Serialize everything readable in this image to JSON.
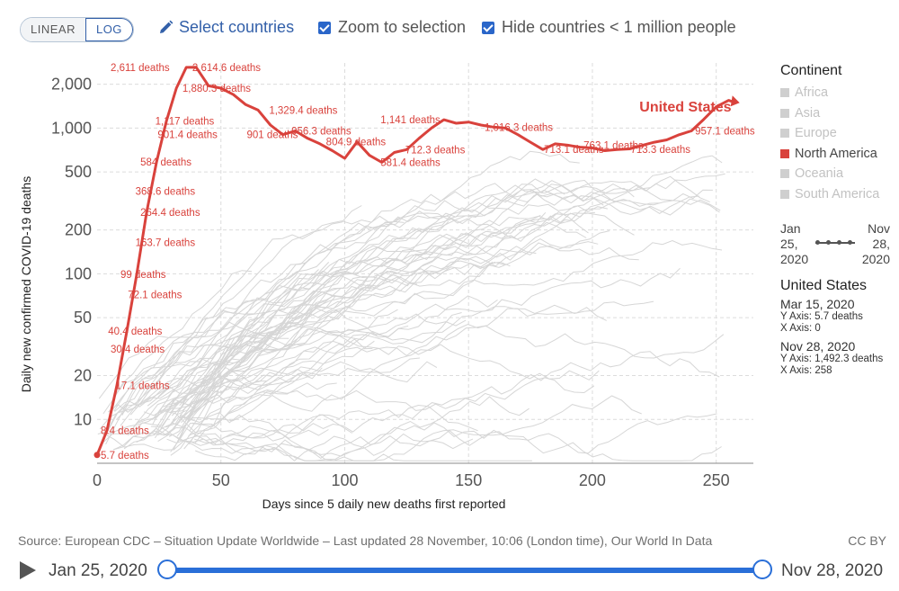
{
  "controls": {
    "linear_label": "LINEAR",
    "log_label": "LOG",
    "select_countries": "Select countries",
    "zoom_label": "Zoom to selection",
    "hide_label": "Hide countries < 1 million people"
  },
  "colors": {
    "highlight": "#d9423c",
    "background_lines": "#d6d6d6",
    "accent": "#2a6fd8"
  },
  "chart_data": {
    "type": "line",
    "yscale": "log",
    "xlabel": "Days since 5 daily new deaths first reported",
    "ylabel": "Daily new confirmed COVID-19 deaths",
    "xlim": [
      0,
      265
    ],
    "ylim": [
      5,
      2800
    ],
    "x_ticks": [
      0,
      50,
      100,
      150,
      200,
      250
    ],
    "y_ticks": [
      10,
      20,
      50,
      100,
      200,
      500,
      1000,
      2000
    ],
    "y_tick_labels": [
      "10",
      "20",
      "50",
      "100",
      "200",
      "500",
      "1,000",
      "2,000"
    ],
    "grid": true,
    "series": [
      {
        "name": "United States",
        "color": "#d9423c",
        "x": [
          0,
          4,
          8,
          12,
          16,
          20,
          24,
          28,
          32,
          36,
          40,
          45,
          50,
          55,
          60,
          65,
          70,
          75,
          80,
          85,
          90,
          95,
          100,
          105,
          110,
          115,
          120,
          125,
          130,
          135,
          140,
          145,
          150,
          155,
          160,
          165,
          170,
          175,
          180,
          185,
          190,
          195,
          200,
          205,
          210,
          215,
          220,
          225,
          230,
          235,
          240,
          245,
          250,
          255,
          258
        ],
        "y": [
          5.7,
          8.4,
          17.1,
          40.4,
          99,
          264.4,
          584,
          1117,
          1880.3,
          2611,
          2614.6,
          1950,
          1880.3,
          1700,
          1450,
          1329.4,
          1050,
          901,
          956.3,
          850,
          780,
          700,
          620,
          804.9,
          650,
          581.4,
          680,
          712.3,
          850,
          1000,
          1141,
          1080,
          1100,
          1050,
          1016.3,
          1000,
          900,
          800,
          713.1,
          780,
          763.1,
          740,
          730,
          700,
          713.3,
          720,
          760,
          800,
          830,
          900,
          957.1,
          1150,
          1400,
          1550,
          1492.3
        ]
      }
    ],
    "annotations": [
      {
        "x": 0,
        "y": 5.7,
        "text": "5.7 deaths"
      },
      {
        "x": 0,
        "y": 8.4,
        "text": "8.4 deaths"
      },
      {
        "x": 6,
        "y": 17.1,
        "text": "17.1 deaths"
      },
      {
        "x": 4,
        "y": 30.4,
        "text": "30.4 deaths"
      },
      {
        "x": 3,
        "y": 40.4,
        "text": "40.4 deaths"
      },
      {
        "x": 11,
        "y": 72.1,
        "text": "72.1 deaths"
      },
      {
        "x": 8,
        "y": 99,
        "text": "99 deaths"
      },
      {
        "x": 14,
        "y": 163.7,
        "text": "163.7 deaths"
      },
      {
        "x": 16,
        "y": 264.4,
        "text": "264.4 deaths"
      },
      {
        "x": 14,
        "y": 368.6,
        "text": "368.6 deaths"
      },
      {
        "x": 16,
        "y": 584,
        "text": "584 deaths"
      },
      {
        "x": 23,
        "y": 901.4,
        "text": "901.4 deaths"
      },
      {
        "x": 22,
        "y": 1117,
        "text": "1,117 deaths"
      },
      {
        "x": 33,
        "y": 1880.3,
        "text": "1,880.3 deaths"
      },
      {
        "x": 4,
        "y": 2611,
        "text": "2,611 deaths"
      },
      {
        "x": 37,
        "y": 2614.6,
        "text": "2,614.6 deaths"
      },
      {
        "x": 68,
        "y": 1329.4,
        "text": "1,329.4 deaths"
      },
      {
        "x": 77,
        "y": 956.3,
        "text": "956.3 deaths"
      },
      {
        "x": 59,
        "y": 901,
        "text": "901 deaths"
      },
      {
        "x": 91,
        "y": 804.9,
        "text": "804.9 deaths"
      },
      {
        "x": 113,
        "y": 581.4,
        "text": "581.4 deaths"
      },
      {
        "x": 123,
        "y": 712.3,
        "text": "712.3 deaths"
      },
      {
        "x": 113,
        "y": 1141,
        "text": "1,141 deaths"
      },
      {
        "x": 155,
        "y": 1016.3,
        "text": "1,016.3 deaths"
      },
      {
        "x": 179,
        "y": 713.1,
        "text": "713.1 deaths"
      },
      {
        "x": 195,
        "y": 763.1,
        "text": "763.1 deaths"
      },
      {
        "x": 214,
        "y": 713.3,
        "text": "713.3 deaths"
      },
      {
        "x": 240,
        "y": 957.1,
        "text": "957.1 deaths"
      }
    ],
    "series_label": {
      "text": "United States",
      "x": 219,
      "y": 1300
    }
  },
  "legend": {
    "title": "Continent",
    "items": [
      {
        "label": "Africa",
        "active": false
      },
      {
        "label": "Asia",
        "active": false
      },
      {
        "label": "Europe",
        "active": false
      },
      {
        "label": "North America",
        "active": true
      },
      {
        "label": "Oceania",
        "active": false
      },
      {
        "label": "South America",
        "active": false
      }
    ]
  },
  "mini_timeline": {
    "start_lines": [
      "Jan",
      "25,",
      "2020"
    ],
    "end_lines": [
      "Nov",
      "28,",
      "2020"
    ]
  },
  "info_panel": {
    "country": "United States",
    "point1": {
      "date": "Mar 15, 2020",
      "y_text": "Y Axis: 5.7 deaths",
      "x_text": "X Axis: 0"
    },
    "point2": {
      "date": "Nov 28, 2020",
      "y_text": "Y Axis: 1,492.3 deaths",
      "x_text": "X Axis: 258"
    }
  },
  "footer": {
    "source": "Source: European CDC – Situation Update Worldwide – Last updated 28 November, 10:06 (London time), Our World In Data",
    "license": "CC BY"
  },
  "timeline": {
    "start": "Jan 25, 2020",
    "end": "Nov 28, 2020",
    "start_fraction": 0,
    "end_fraction": 1
  }
}
